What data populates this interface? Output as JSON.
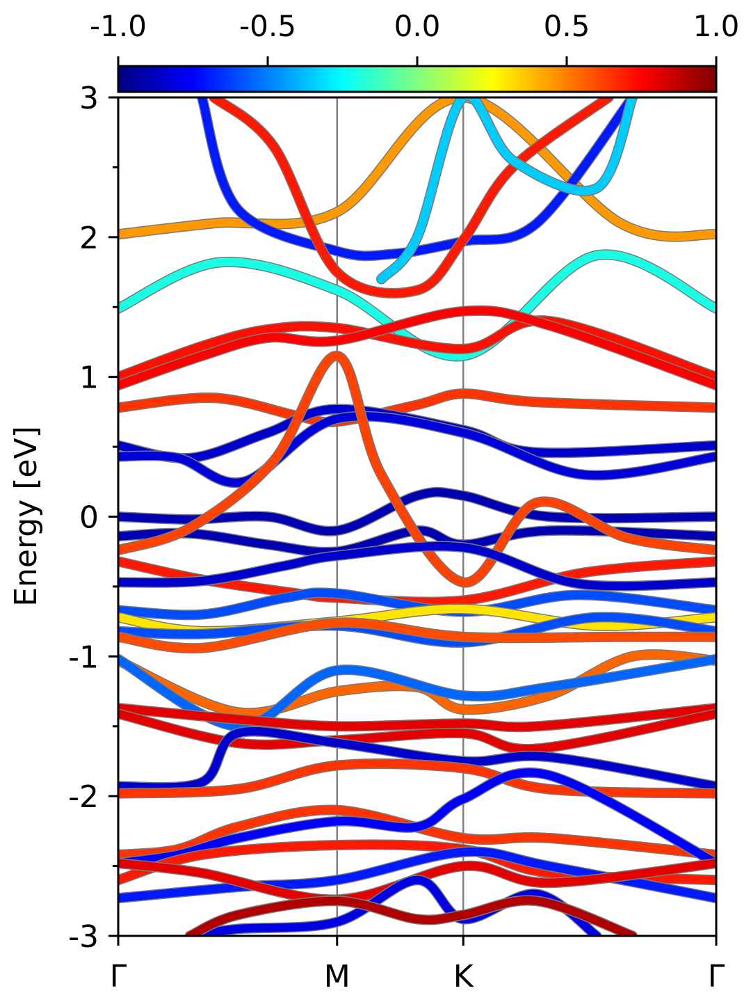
{
  "chart_data": {
    "type": "line",
    "ylabel": "Energy [eV]",
    "ylim": [
      -3,
      3
    ],
    "yticks": [
      "-3",
      "-2",
      "-1",
      "0",
      "1",
      "2",
      "3"
    ],
    "xlim": [
      0,
      1
    ],
    "kpoints": [
      {
        "label": "Γ",
        "x": 0
      },
      {
        "label": "M",
        "x": 0.366
      },
      {
        "label": "K",
        "x": 0.577
      },
      {
        "label": "Γ",
        "x": 1
      }
    ],
    "colorbar": {
      "range": [
        -1.0,
        1.0
      ],
      "tick_labels": [
        "-1.0",
        "-0.5",
        "0.0",
        "0.5",
        "1.0"
      ],
      "tick_values": [
        -1.0,
        -0.5,
        0.0,
        0.5,
        1.0
      ],
      "colormap": "jet",
      "stops": [
        "#00007f",
        "#0000ff",
        "#007fff",
        "#00ffff",
        "#7fff7f",
        "#ffff00",
        "#ff7f00",
        "#ff0000",
        "#7f0000"
      ]
    },
    "grid": false,
    "series": [
      {
        "color_value": 0.45,
        "x": [
          0.0,
          0.16,
          0.366,
          0.577,
          0.84,
          1.0
        ],
        "y": [
          2.02,
          2.1,
          2.18,
          3.0,
          2.1,
          2.02
        ]
      },
      {
        "color_value": -0.2,
        "x": [
          0.0,
          0.17,
          0.366,
          0.577,
          0.8,
          1.0
        ],
        "y": [
          1.49,
          1.82,
          1.62,
          1.15,
          1.87,
          1.49
        ]
      },
      {
        "color_value": 0.72,
        "x": [
          0.0,
          0.14,
          0.25,
          0.366,
          0.577,
          0.72,
          1.0
        ],
        "y": [
          1.0,
          1.22,
          1.34,
          1.35,
          1.2,
          1.4,
          1.0
        ]
      },
      {
        "color_value": 0.75,
        "x": [
          0.0,
          0.14,
          0.25,
          0.366,
          0.577,
          0.72,
          1.0
        ],
        "y": [
          0.94,
          1.15,
          1.28,
          1.26,
          1.47,
          1.37,
          0.94
        ]
      },
      {
        "color_value": 0.65,
        "x": [
          0.0,
          0.16,
          0.3,
          0.366,
          0.5,
          0.577,
          0.7,
          1.0
        ],
        "y": [
          0.78,
          0.85,
          0.72,
          0.68,
          0.8,
          0.88,
          0.82,
          0.78
        ]
      },
      {
        "color_value": -0.85,
        "x": [
          0.0,
          0.12,
          0.25,
          0.366,
          0.577,
          0.7,
          1.0
        ],
        "y": [
          0.51,
          0.42,
          0.6,
          0.77,
          0.62,
          0.46,
          0.51
        ]
      },
      {
        "color_value": -0.82,
        "x": [
          0.0,
          0.1,
          0.21,
          0.366,
          0.577,
          0.78,
          1.0
        ],
        "y": [
          0.43,
          0.42,
          0.25,
          0.7,
          0.6,
          0.3,
          0.43
        ]
      },
      {
        "color_value": -0.9,
        "x": [
          0.0,
          0.12,
          0.25,
          0.366,
          0.5,
          0.577,
          0.72,
          1.0
        ],
        "y": [
          0.0,
          -0.02,
          0.0,
          -0.1,
          0.15,
          0.15,
          0.0,
          0.0
        ]
      },
      {
        "color_value": -0.9,
        "x": [
          0.0,
          0.12,
          0.25,
          0.366,
          0.5,
          0.577,
          0.72,
          1.0
        ],
        "y": [
          -0.14,
          -0.12,
          -0.2,
          -0.25,
          -0.1,
          -0.2,
          -0.1,
          -0.14
        ]
      },
      {
        "color_value": 0.62,
        "x": [
          0.0,
          0.12,
          0.26,
          0.366,
          0.44,
          0.577,
          0.7,
          0.85,
          1.0
        ],
        "y": [
          -0.24,
          -0.08,
          0.4,
          1.15,
          0.3,
          -0.47,
          0.1,
          -0.15,
          -0.24
        ]
      },
      {
        "color_value": 0.7,
        "x": [
          0.0,
          0.14,
          0.3,
          0.366,
          0.577,
          0.78,
          1.0
        ],
        "y": [
          -0.32,
          -0.45,
          -0.55,
          -0.58,
          -0.6,
          -0.4,
          -0.32
        ]
      },
      {
        "color_value": -0.85,
        "x": [
          0.0,
          0.14,
          0.28,
          0.366,
          0.577,
          0.77,
          1.0
        ],
        "y": [
          -0.47,
          -0.46,
          -0.35,
          -0.28,
          -0.22,
          -0.48,
          -0.47
        ]
      },
      {
        "color_value": -0.6,
        "x": [
          0.0,
          0.14,
          0.28,
          0.366,
          0.577,
          0.77,
          1.0
        ],
        "y": [
          -0.67,
          -0.7,
          -0.58,
          -0.55,
          -0.68,
          -0.56,
          -0.67
        ]
      },
      {
        "color_value": 0.3,
        "x": [
          0.0,
          0.14,
          0.366,
          0.577,
          0.8,
          1.0
        ],
        "y": [
          -0.72,
          -0.82,
          -0.75,
          -0.66,
          -0.78,
          -0.72
        ]
      },
      {
        "color_value": -0.6,
        "x": [
          0.0,
          0.14,
          0.366,
          0.577,
          0.8,
          1.0
        ],
        "y": [
          -0.82,
          -0.84,
          -0.78,
          -0.9,
          -0.72,
          -0.82
        ]
      },
      {
        "color_value": 0.6,
        "x": [
          0.0,
          0.14,
          0.366,
          0.577,
          0.84,
          1.0
        ],
        "y": [
          -0.86,
          -0.94,
          -0.76,
          -0.86,
          -0.86,
          -0.86
        ]
      },
      {
        "color_value": 0.55,
        "x": [
          0.0,
          0.2,
          0.366,
          0.5,
          0.577,
          0.72,
          0.86,
          1.0
        ],
        "y": [
          -1.03,
          -1.4,
          -1.25,
          -1.22,
          -1.38,
          -1.28,
          -1.0,
          -1.03
        ]
      },
      {
        "color_value": -0.55,
        "x": [
          0.0,
          0.2,
          0.366,
          0.577,
          0.72,
          1.0
        ],
        "y": [
          -1.02,
          -1.5,
          -1.1,
          -1.28,
          -1.22,
          -1.02
        ]
      },
      {
        "color_value": 0.8,
        "x": [
          0.0,
          0.2,
          0.366,
          0.577,
          0.7,
          1.0
        ],
        "y": [
          -1.37,
          -1.45,
          -1.5,
          -1.48,
          -1.5,
          -1.37
        ]
      },
      {
        "color_value": 0.8,
        "x": [
          0.0,
          0.2,
          0.366,
          0.577,
          0.7,
          1.0
        ],
        "y": [
          -1.41,
          -1.62,
          -1.6,
          -1.55,
          -1.66,
          -1.41
        ]
      },
      {
        "color_value": -0.85,
        "x": [
          0.0,
          0.14,
          0.2,
          0.366,
          0.577,
          0.72,
          1.0
        ],
        "y": [
          -1.93,
          -1.9,
          -1.55,
          -1.62,
          -1.75,
          -1.72,
          -1.93
        ]
      },
      {
        "color_value": 0.65,
        "x": [
          0.0,
          0.2,
          0.366,
          0.577,
          0.72,
          1.0
        ],
        "y": [
          -1.98,
          -1.95,
          -1.78,
          -1.8,
          -1.95,
          -1.98
        ]
      },
      {
        "color_value": 0.65,
        "x": [
          0.0,
          0.1,
          0.2,
          0.366,
          0.577,
          0.72,
          1.0
        ],
        "y": [
          -2.42,
          -2.38,
          -2.22,
          -2.1,
          -2.3,
          -2.3,
          -2.42
        ]
      },
      {
        "color_value": -0.75,
        "x": [
          0.0,
          0.1,
          0.2,
          0.366,
          0.5,
          0.577,
          0.72,
          1.0
        ],
        "y": [
          -2.48,
          -2.42,
          -2.3,
          -2.18,
          -2.22,
          -2.02,
          -1.85,
          -2.48
        ]
      },
      {
        "color_value": 0.7,
        "x": [
          0.0,
          0.14,
          0.366,
          0.577,
          0.72,
          1.0
        ],
        "y": [
          -2.6,
          -2.42,
          -2.35,
          -2.38,
          -2.55,
          -2.6
        ]
      },
      {
        "color_value": -0.7,
        "x": [
          0.0,
          0.2,
          0.366,
          0.577,
          0.72,
          1.0
        ],
        "y": [
          -2.73,
          -2.65,
          -2.6,
          -2.4,
          -2.5,
          -2.73
        ]
      },
      {
        "color_value": 0.8,
        "x": [
          0.0,
          0.14,
          0.366,
          0.577,
          0.72,
          1.0
        ],
        "y": [
          -2.48,
          -2.55,
          -2.74,
          -2.5,
          -2.62,
          -2.48
        ]
      },
      {
        "color_value": -0.7,
        "x": [
          0.14,
          0.2,
          0.366,
          0.46,
          0.577,
          0.7,
          0.86
        ],
        "y": [
          3.0,
          2.2,
          1.9,
          1.88,
          1.97,
          2.1,
          3.0
        ]
      },
      {
        "color_value": 0.7,
        "x": [
          0.16,
          0.26,
          0.366,
          0.5,
          0.577,
          0.66,
          0.82
        ],
        "y": [
          3.0,
          2.65,
          1.75,
          1.62,
          1.98,
          2.5,
          3.0
        ]
      },
      {
        "color_value": -0.35,
        "x": [
          0.44,
          0.5,
          0.577,
          0.66,
          0.8,
          0.86
        ],
        "y": [
          1.7,
          2.0,
          3.0,
          2.55,
          2.35,
          3.0
        ]
      },
      {
        "color_value": -0.8,
        "x": [
          0.12,
          0.2,
          0.366,
          0.5,
          0.577,
          0.7,
          0.8
        ],
        "y": [
          -3.0,
          -2.95,
          -2.9,
          -2.6,
          -2.88,
          -2.7,
          -3.0
        ]
      },
      {
        "color_value": 0.9,
        "x": [
          0.12,
          0.2,
          0.366,
          0.5,
          0.577,
          0.7,
          0.86
        ],
        "y": [
          -3.0,
          -2.85,
          -2.75,
          -2.88,
          -2.85,
          -2.75,
          -3.0
        ]
      }
    ]
  }
}
